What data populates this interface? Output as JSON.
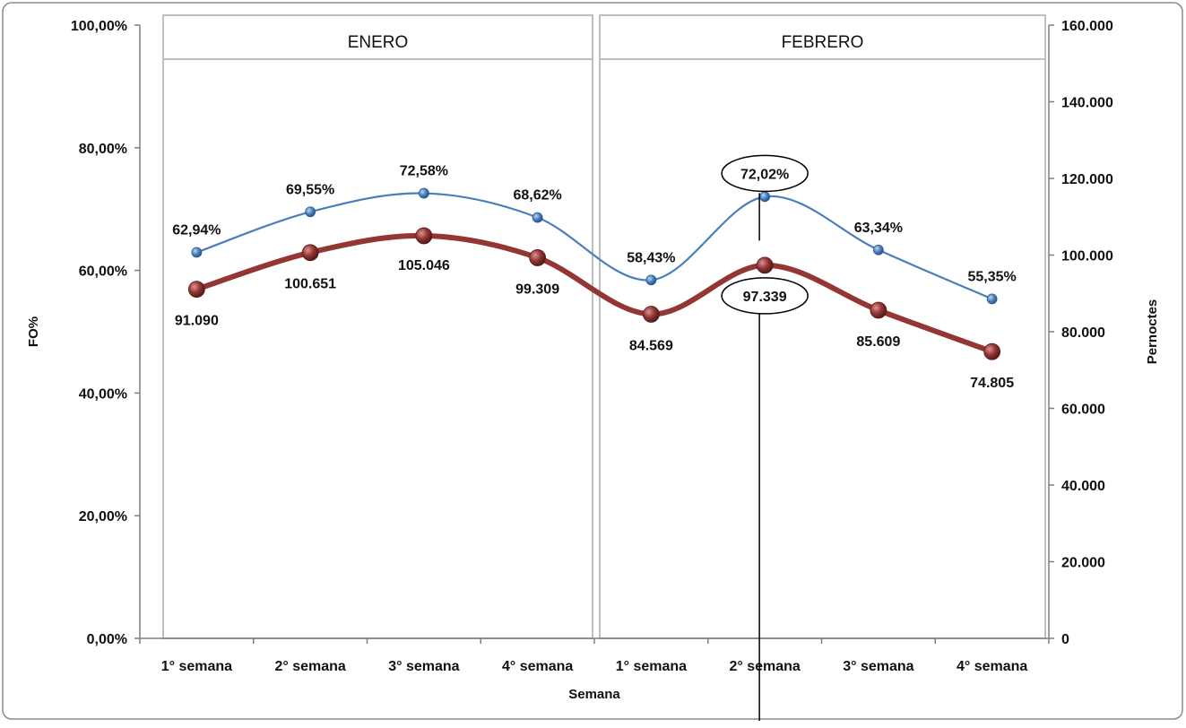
{
  "chart_data": {
    "type": "line",
    "groups": [
      "ENERO",
      "FEBRERO"
    ],
    "categories": [
      "1° semana",
      "2° semana",
      "3° semana",
      "4° semana",
      "1° semana",
      "2° semana",
      "3° semana",
      "4° semana"
    ],
    "xlabel": "Semana",
    "ylabel": "FO%",
    "y2label": "Pernoctes",
    "ylim": [
      0,
      100
    ],
    "y2lim": [
      0,
      160000
    ],
    "yticks": [
      "0,00%",
      "20,00%",
      "40,00%",
      "60,00%",
      "80,00%",
      "100,00%"
    ],
    "y2ticks": [
      "0",
      "20.000",
      "40.000",
      "60.000",
      "80.000",
      "100.000",
      "120.000",
      "140.000",
      "160.000"
    ],
    "series": [
      {
        "axis": "left",
        "color": "#4a7ebb",
        "values": [
          62.94,
          69.55,
          72.58,
          68.62,
          58.43,
          72.02,
          63.34,
          55.35
        ],
        "labels": [
          "62,94%",
          "69,55%",
          "72,58%",
          "68,62%",
          "58,43%",
          "72,02%",
          "63,34%",
          "55,35%"
        ]
      },
      {
        "axis": "right",
        "color": "#943634",
        "values": [
          91090,
          100651,
          105046,
          99309,
          84569,
          97339,
          85609,
          74805
        ],
        "labels": [
          "91.090",
          "100.651",
          "105.046",
          "99.309",
          "84.569",
          "97.339",
          "85.609",
          "74.805"
        ]
      }
    ],
    "highlight_index": 5,
    "grid": false,
    "legend": "none"
  }
}
